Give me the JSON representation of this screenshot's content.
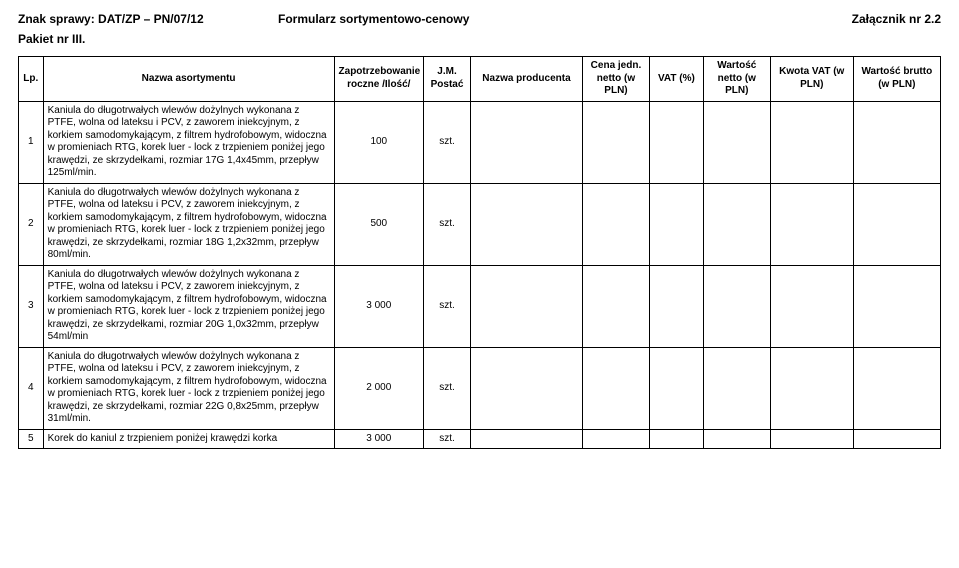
{
  "header": {
    "left": "Znak sprawy: DAT/ZP – PN/07/12",
    "center": "Formularz sortymentowo-cenowy",
    "right": "Załącznik nr 2.2",
    "pakiet": "Pakiet nr III."
  },
  "table": {
    "columns": [
      "Lp.",
      "Nazwa asortymentu",
      "Zapotrzebowanie roczne /Ilość/",
      "J.M. Postać",
      "Nazwa producenta",
      "Cena jedn. netto (w PLN)",
      "VAT (%)",
      "Wartość netto (w PLN)",
      "Kwota VAT (w PLN)",
      "Wartość brutto (w PLN)"
    ],
    "rows": [
      {
        "lp": "1",
        "name": "Kaniula do długotrwałych wlewów dożylnych wykonana z PTFE, wolna od lateksu i PCV, z zaworem iniekcyjnym, z korkiem samodomykającym, z filtrem hydrofobowym, widoczna w promieniach RTG, korek luer - lock z trzpieniem poniżej jego krawędzi, ze skrzydełkami, rozmiar 17G 1,4x45mm, przepływ 125ml/min.",
        "qty": "100",
        "unit": "szt."
      },
      {
        "lp": "2",
        "name": "Kaniula do długotrwałych wlewów dożylnych wykonana z PTFE, wolna od lateksu i PCV, z zaworem iniekcyjnym, z korkiem samodomykającym, z filtrem hydrofobowym, widoczna w promieniach RTG, korek luer - lock z trzpieniem poniżej jego krawędzi, ze skrzydełkami, rozmiar 18G 1,2x32mm, przepływ 80ml/min.",
        "qty": "500",
        "unit": "szt."
      },
      {
        "lp": "3",
        "name": "Kaniula do długotrwałych wlewów dożylnych wykonana z PTFE, wolna od lateksu i PCV, z zaworem iniekcyjnym, z korkiem samodomykającym, z filtrem hydrofobowym, widoczna w promieniach RTG, korek luer - lock z trzpieniem poniżej jego krawędzi, ze skrzydełkami, rozmiar 20G 1,0x32mm, przepływ 54ml/min",
        "qty": "3 000",
        "unit": "szt."
      },
      {
        "lp": "4",
        "name": "Kaniula do długotrwałych wlewów dożylnych wykonana z PTFE, wolna od lateksu i PCV, z zaworem iniekcyjnym, z korkiem samodomykającym, z filtrem hydrofobowym, widoczna w promieniach RTG, korek luer - lock z trzpieniem poniżej jego krawędzi, ze skrzydełkami, rozmiar 22G 0,8x25mm, przepływ 31ml/min.",
        "qty": "2 000",
        "unit": "szt."
      },
      {
        "lp": "5",
        "name": "Korek do kaniul z trzpieniem poniżej krawędzi korka",
        "qty": "3 000",
        "unit": "szt."
      }
    ]
  }
}
